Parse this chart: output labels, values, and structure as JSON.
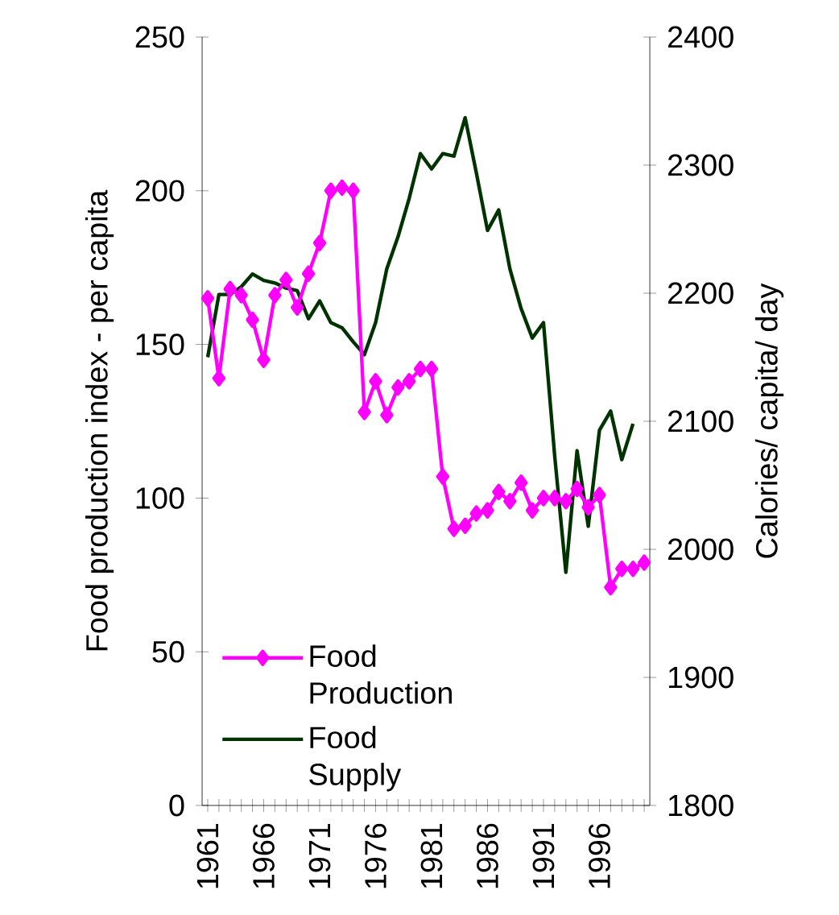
{
  "chart_data": {
    "type": "line",
    "categories": [
      "1961",
      null,
      null,
      null,
      null,
      "1966",
      null,
      null,
      null,
      null,
      "1971",
      null,
      null,
      null,
      null,
      "1976",
      null,
      null,
      null,
      null,
      "1981",
      null,
      null,
      null,
      null,
      "1986",
      null,
      null,
      null,
      null,
      "1991",
      null,
      null,
      null,
      null,
      "1996",
      null,
      null,
      null,
      null
    ],
    "series": [
      {
        "name": "Food Production",
        "color": "#ff00ff",
        "marker": "diamond",
        "values": [
          165,
          139,
          168,
          166,
          158,
          145,
          166,
          171,
          162,
          173,
          183,
          200,
          201,
          200,
          128,
          138,
          127,
          136,
          138,
          142,
          142,
          107,
          90,
          91,
          95,
          96,
          102,
          99,
          105,
          96,
          100,
          100,
          99,
          103,
          97,
          101,
          71,
          77,
          77,
          79
        ]
      },
      {
        "name": "Food Supply",
        "color": "#003300",
        "marker": "none",
        "axis": "y2",
        "values": [
          2150,
          2199,
          2199,
          2205,
          2215,
          2210,
          2208,
          2204,
          2202,
          2180,
          2194,
          2177,
          2173,
          2162,
          2152,
          2177,
          2219,
          2244,
          2274,
          2309,
          2297,
          2309,
          2307,
          2337,
          2294,
          2249,
          2265,
          2219,
          2188,
          2165,
          2177,
          2073,
          1982,
          2077,
          2018,
          2093,
          2108,
          2070,
          2098,
          null
        ]
      }
    ],
    "ylabel": "Food production index - per capita",
    "y2label": "Calories/ capita/ day",
    "ylim": [
      0,
      250
    ],
    "yticks": [
      0,
      50,
      100,
      150,
      200,
      250
    ],
    "y2lim": [
      1800,
      2400
    ],
    "y2ticks": [
      1800,
      1900,
      2000,
      2100,
      2200,
      2300,
      2400
    ],
    "legend": "bottom left"
  }
}
